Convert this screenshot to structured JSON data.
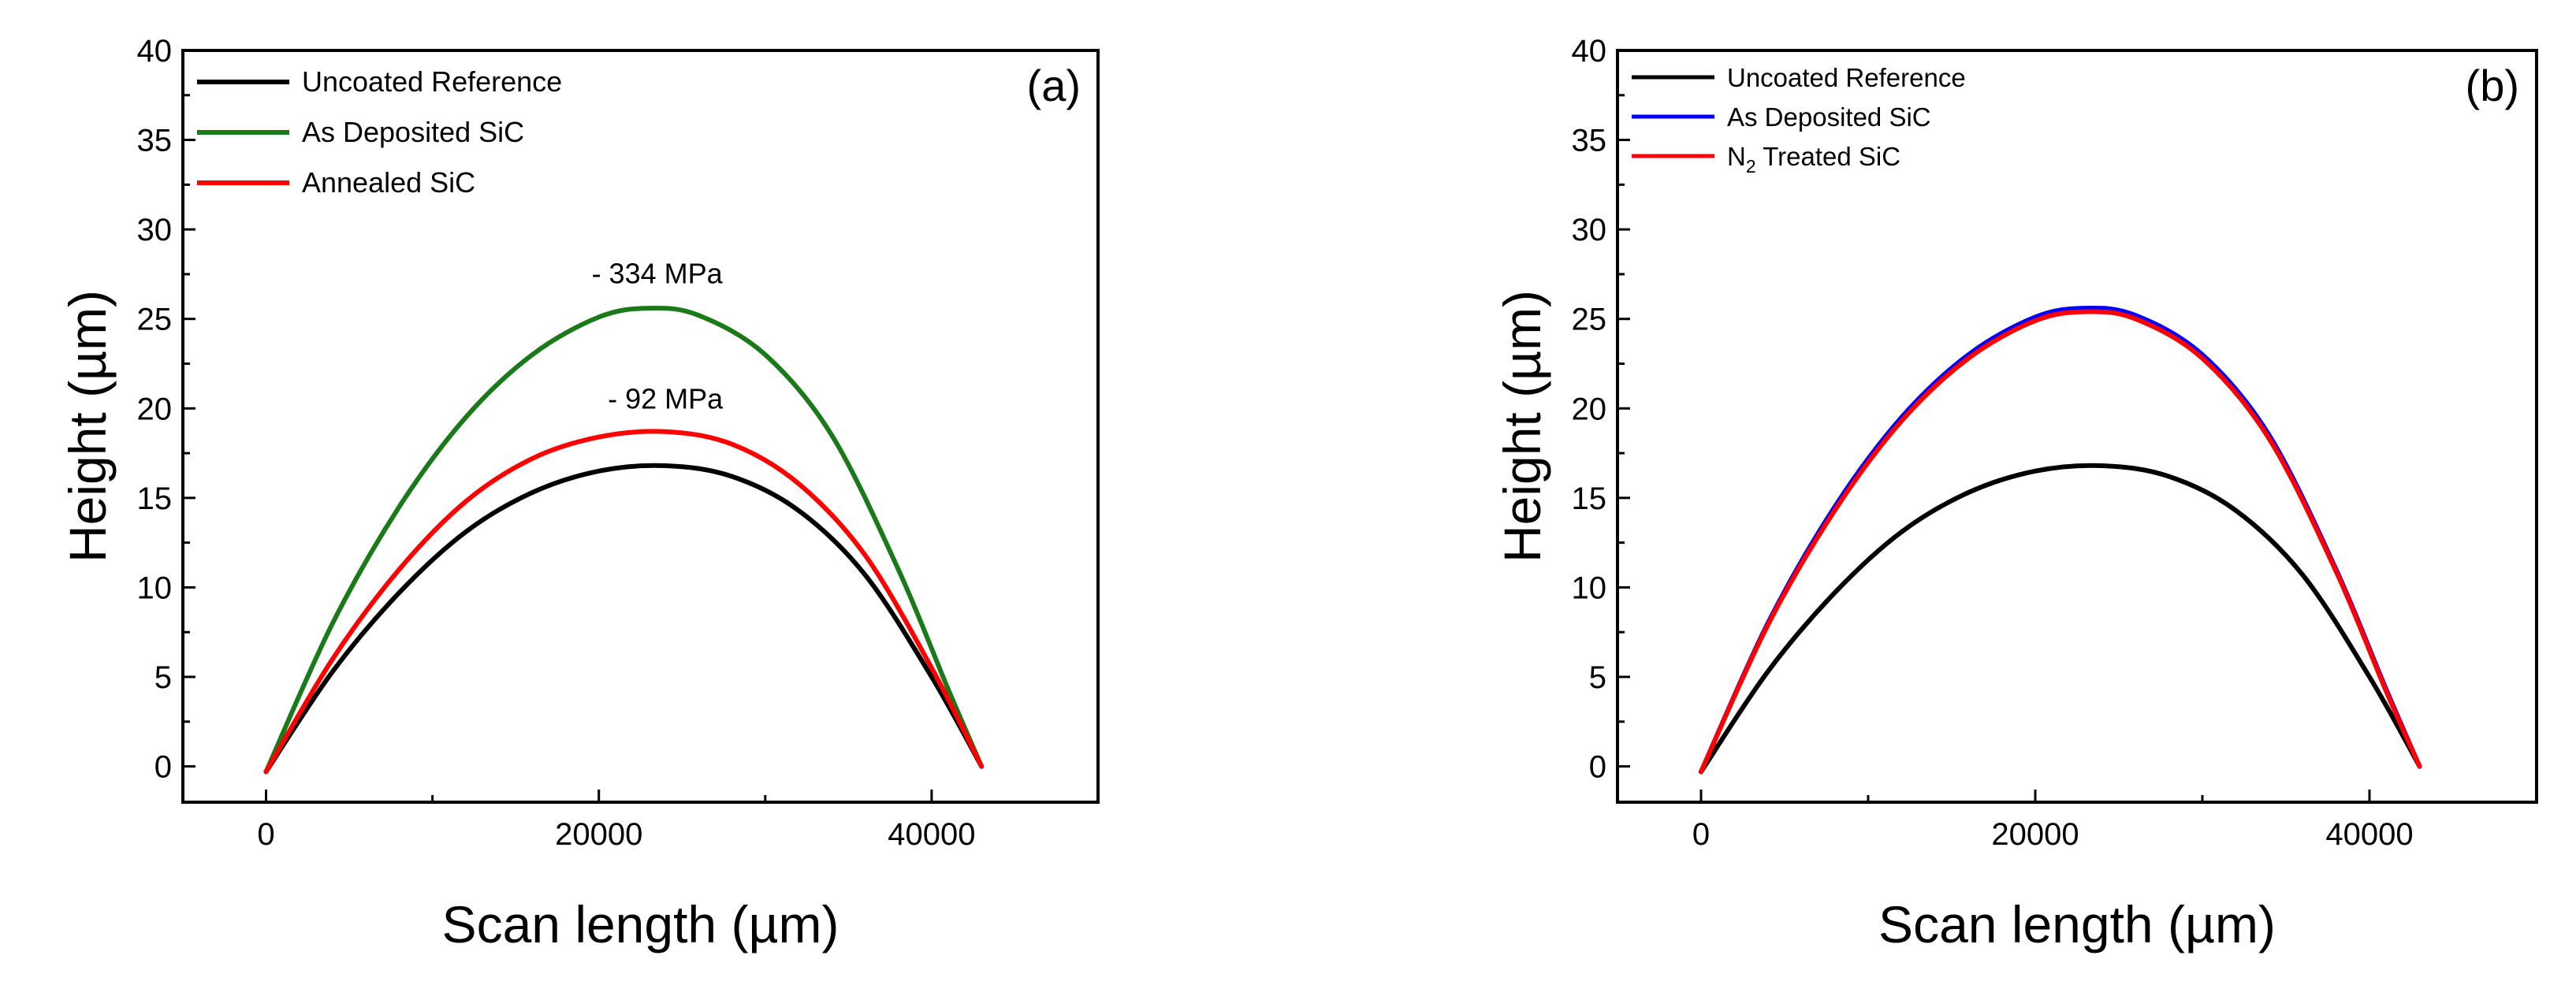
{
  "chart_data": [
    {
      "type": "line",
      "panel_label": "(a)",
      "xlabel": "Scan length (µm)",
      "ylabel": "Height (µm)",
      "xlim": [
        -5000,
        50000
      ],
      "ylim": [
        -2,
        40
      ],
      "xticks": [
        0,
        20000,
        40000
      ],
      "xtick_labels": [
        "0",
        "20000",
        "40000"
      ],
      "yticks": [
        0,
        5,
        10,
        15,
        20,
        25,
        30,
        35,
        40
      ],
      "ytick_labels": [
        "0",
        "5",
        "10",
        "15",
        "20",
        "25",
        "30",
        "35",
        "40"
      ],
      "legend_position": "top-left",
      "series": [
        {
          "name": "Uncoated Reference",
          "color": "#000000",
          "x": [
            0,
            4000,
            8000,
            12000,
            16000,
            20000,
            24000,
            28000,
            32000,
            36000,
            40000,
            43000
          ],
          "y": [
            -0.3,
            5.3,
            9.7,
            13.1,
            15.3,
            16.5,
            16.8,
            16.2,
            14.3,
            10.7,
            5.0,
            0.0
          ]
        },
        {
          "name": "As Deposited SiC",
          "color": "#1a7a1a",
          "x": [
            0,
            4000,
            8000,
            12000,
            16000,
            20000,
            23000,
            26000,
            30000,
            34000,
            38000,
            41000,
            43000
          ],
          "y": [
            -0.3,
            8.0,
            14.5,
            19.5,
            23.0,
            25.1,
            25.6,
            25.2,
            23.0,
            18.5,
            11.0,
            4.3,
            0.0
          ]
        },
        {
          "name": "Annealed SiC",
          "color": "#ff0000",
          "x": [
            0,
            4000,
            8000,
            12000,
            16000,
            20000,
            24000,
            28000,
            32000,
            36000,
            40000,
            43000
          ],
          "y": [
            -0.3,
            6.0,
            11.0,
            14.8,
            17.2,
            18.4,
            18.7,
            18.0,
            15.8,
            11.8,
            5.5,
            0.0
          ]
        }
      ],
      "annotations": [
        {
          "text": "- 334 MPa",
          "x": 23500,
          "y": 27.0
        },
        {
          "text": "- 92 MPa",
          "x": 24000,
          "y": 20.0
        }
      ]
    },
    {
      "type": "line",
      "panel_label": "(b)",
      "xlabel": "Scan length (µm)",
      "ylabel": "Height (µm)",
      "xlim": [
        -5000,
        50000
      ],
      "ylim": [
        -2,
        40
      ],
      "xticks": [
        0,
        20000,
        40000
      ],
      "xtick_labels": [
        "0",
        "20000",
        "40000"
      ],
      "yticks": [
        0,
        5,
        10,
        15,
        20,
        25,
        30,
        35,
        40
      ],
      "ytick_labels": [
        "0",
        "5",
        "10",
        "15",
        "20",
        "25",
        "30",
        "35",
        "40"
      ],
      "legend_position": "top-left",
      "series": [
        {
          "name": "Uncoated Reference",
          "color": "#000000",
          "x": [
            0,
            4000,
            8000,
            12000,
            16000,
            20000,
            24000,
            28000,
            32000,
            36000,
            40000,
            43000
          ],
          "y": [
            -0.3,
            5.3,
            9.7,
            13.1,
            15.3,
            16.5,
            16.8,
            16.2,
            14.3,
            10.7,
            5.0,
            0.0
          ]
        },
        {
          "name": "As Deposited SiC",
          "color": "#0000ff",
          "x": [
            0,
            4000,
            8000,
            12000,
            16000,
            20000,
            23000,
            26000,
            30000,
            34000,
            38000,
            41000,
            43000
          ],
          "y": [
            -0.3,
            8.0,
            14.5,
            19.5,
            23.0,
            25.1,
            25.6,
            25.2,
            23.0,
            18.5,
            11.0,
            4.3,
            0.0
          ]
        },
        {
          "name": "N2 Treated SiC",
          "name_main": "N",
          "name_sub": "2",
          "name_rest": " Treated SiC",
          "color": "#ff0000",
          "x": [
            0,
            4000,
            8000,
            12000,
            16000,
            20000,
            23000,
            26000,
            30000,
            34000,
            38000,
            41000,
            43000
          ],
          "y": [
            -0.3,
            7.9,
            14.3,
            19.3,
            22.8,
            24.9,
            25.4,
            25.0,
            22.8,
            18.3,
            10.9,
            4.2,
            0.0
          ]
        }
      ],
      "annotations": []
    }
  ]
}
